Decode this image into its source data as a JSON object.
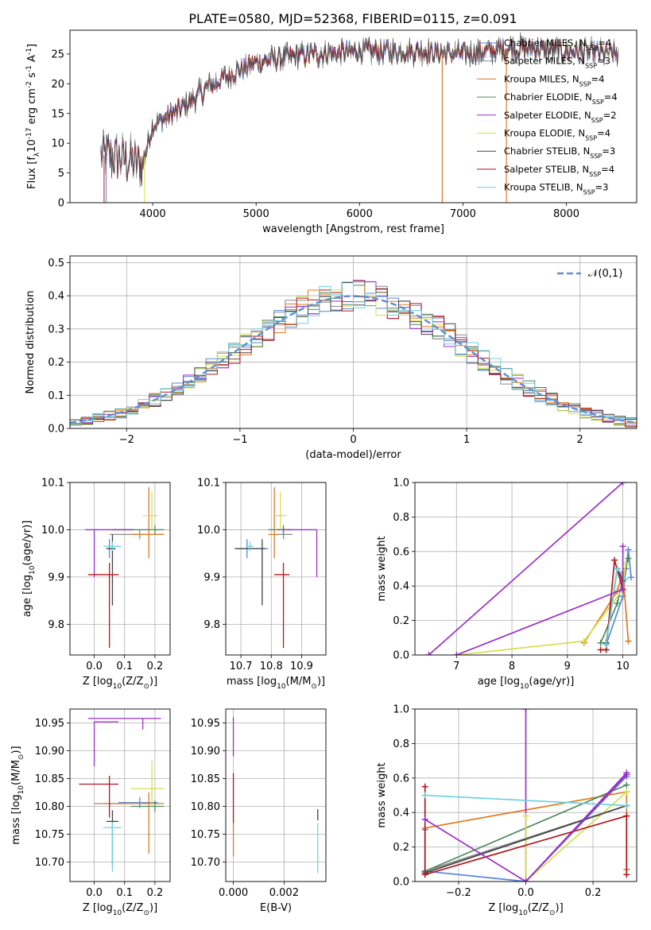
{
  "title": "PLATE=0580, MJD=52368, FIBERID=0115, z=0.091",
  "models": [
    {
      "label": "Chabrier MILES, N$_{SSP}$=4",
      "color": "#5b86d6"
    },
    {
      "label": "Salpeter MILES, N$_{SSP}$=3",
      "color": "#8a8a8a"
    },
    {
      "label": "Kroupa MILES, N$_{SSP}$=4",
      "color": "#e07a1f"
    },
    {
      "label": "Chabrier ELODIE, N$_{SSP}$=4",
      "color": "#4f8a5f"
    },
    {
      "label": "Salpeter ELODIE, N$_{SSP}$=2",
      "color": "#9b30c8"
    },
    {
      "label": "Kroupa ELODIE, N$_{SSP}$=4",
      "color": "#d4e04a"
    },
    {
      "label": "Chabrier STELIB, N$_{SSP}$=3",
      "color": "#444444"
    },
    {
      "label": "Salpeter STELIB, N$_{SSP}$=4",
      "color": "#b0181c"
    },
    {
      "label": "Kroupa STELIB, N$_{SSP}$=3",
      "color": "#6fd3dc"
    }
  ],
  "chart_data": [
    {
      "id": "spectrum",
      "type": "line",
      "xlabel": "wavelength [Angstrom, rest frame]",
      "ylabel": "Flux [f$_\\lambda$10$^{-17}$ erg cm$^{-2}$ s$^{-1}$ A$^{-1}$]",
      "xlim": [
        3200,
        8680
      ],
      "ylim": [
        0,
        29
      ],
      "xticks": [
        4000,
        5000,
        6000,
        7000,
        8000
      ],
      "yticks": [
        0,
        5,
        10,
        15,
        20,
        25
      ],
      "grid": false,
      "legend": "right",
      "continuum": {
        "x": [
          3500,
          3700,
          3900,
          4000,
          4300,
          4500,
          4800,
          5000,
          5300,
          5600,
          6000,
          6500,
          7000,
          7500,
          8000,
          8500
        ],
        "y": [
          8,
          7.5,
          6.5,
          13,
          16,
          19,
          22,
          23.5,
          24.5,
          25,
          25.5,
          25.5,
          25,
          26,
          25.5,
          25
        ]
      }
    },
    {
      "id": "residuals",
      "type": "bar",
      "xlabel": "(data-model)/error",
      "ylabel": "Normed distribution",
      "xlim": [
        -2.5,
        2.5
      ],
      "ylim": [
        0,
        0.52
      ],
      "xticks": [
        -2,
        -1,
        0,
        1,
        2
      ],
      "yticks": [
        0.0,
        0.1,
        0.2,
        0.3,
        0.4,
        0.5
      ],
      "grid": true,
      "legend": "top-right",
      "reference_label": "$\\mathcal{N}(0,1)$",
      "reference_color": "#5b8fd6",
      "bin_width": 0.1
    },
    {
      "id": "age-vs-Z",
      "type": "scatter",
      "xlabel": "Z [log$_{10}$($Z/Z_\\odot$)]",
      "ylabel": "age  [log$_{10}$($age/yr$)]",
      "xlim": [
        -0.08,
        0.25
      ],
      "ylim": [
        9.735,
        10.1
      ],
      "xticks": [
        0.0,
        0.1,
        0.2
      ],
      "yticks": [
        9.8,
        9.9,
        10.0,
        10.1
      ],
      "grid": true,
      "points": [
        {
          "model": 0,
          "x": 0.05,
          "y": 9.96,
          "xerr": [
            0.01,
            0.02
          ],
          "yerr": [
            0.02,
            0.02
          ]
        },
        {
          "model": 1,
          "x": 0.15,
          "y": 9.99,
          "xerr": [
            0.1,
            0.08
          ],
          "yerr": [
            0.01,
            0.01
          ]
        },
        {
          "model": 2,
          "x": 0.18,
          "y": 9.99,
          "xerr": [
            0.06,
            0.05
          ],
          "yerr": [
            0.05,
            0.1
          ]
        },
        {
          "model": 3,
          "x": 0.2,
          "y": 10.0,
          "xerr": [
            0.14,
            0.03
          ],
          "yerr": [
            0.01,
            0.01
          ]
        },
        {
          "model": 4,
          "x": 0.0,
          "y": 10.0,
          "xerr": [
            0.03,
            0.13
          ],
          "yerr": [
            0.1,
            0.0
          ]
        },
        {
          "model": 5,
          "x": 0.19,
          "y": 10.03,
          "xerr": [
            0.03,
            0.02
          ],
          "yerr": [
            0.03,
            0.05
          ]
        },
        {
          "model": 6,
          "x": 0.06,
          "y": 9.96,
          "xerr": [
            0.02,
            0.01
          ],
          "yerr": [
            0.12,
            0.03
          ]
        },
        {
          "model": 7,
          "x": 0.05,
          "y": 9.905,
          "xerr": [
            0.07,
            0.03
          ],
          "yerr": [
            0.155,
            0.025
          ]
        },
        {
          "model": 8,
          "x": 0.06,
          "y": 9.965,
          "xerr": [
            0.03,
            0.03
          ],
          "yerr": [
            0.01,
            0.01
          ]
        }
      ]
    },
    {
      "id": "age-vs-mass",
      "type": "scatter",
      "xlabel": "mass [log$_{10}$($M/M_\\odot$)]",
      "ylabel": "",
      "xlim": [
        10.65,
        10.98
      ],
      "ylim": [
        9.735,
        10.1
      ],
      "xticks": [
        10.7,
        10.8,
        10.9
      ],
      "yticks": [
        9.8,
        9.9,
        10.0,
        10.1
      ],
      "grid": true,
      "points": [
        {
          "model": 0,
          "x": 10.72,
          "y": 9.96,
          "xerr": [
            0.04,
            0.07
          ],
          "yerr": [
            0.02,
            0.02
          ]
        },
        {
          "model": 1,
          "x": 10.84,
          "y": 9.99,
          "xerr": [
            0.02,
            0.03
          ],
          "yerr": [
            0.01,
            0.01
          ]
        },
        {
          "model": 2,
          "x": 10.81,
          "y": 9.99,
          "xerr": [
            0.02,
            0.01
          ],
          "yerr": [
            0.05,
            0.1
          ]
        },
        {
          "model": 3,
          "x": 10.84,
          "y": 10.0,
          "xerr": [
            0.05,
            0.03
          ],
          "yerr": [
            0.01,
            0.01
          ]
        },
        {
          "model": 4,
          "x": 10.95,
          "y": 10.0,
          "xerr": [
            0.13,
            0.0
          ],
          "yerr": [
            0.1,
            0.0
          ]
        },
        {
          "model": 5,
          "x": 10.83,
          "y": 10.03,
          "xerr": [
            0.02,
            0.02
          ],
          "yerr": [
            0.03,
            0.05
          ]
        },
        {
          "model": 6,
          "x": 10.77,
          "y": 9.96,
          "xerr": [
            0.09,
            0.01
          ],
          "yerr": [
            0.12,
            0.02
          ]
        },
        {
          "model": 7,
          "x": 10.84,
          "y": 9.905,
          "xerr": [
            0.03,
            0.02
          ],
          "yerr": [
            0.155,
            0.025
          ]
        },
        {
          "model": 8,
          "x": 10.73,
          "y": 9.965,
          "xerr": [
            0.01,
            0.01
          ],
          "yerr": [
            0.01,
            0.01
          ]
        }
      ]
    },
    {
      "id": "weight-vs-age",
      "type": "line",
      "xlabel": "age  [log$_{10}$($age/yr$)]",
      "ylabel": "mass weight",
      "xlim": [
        6.25,
        10.25
      ],
      "ylim": [
        0,
        1.0
      ],
      "xticks": [
        7,
        8,
        9,
        10
      ],
      "yticks": [
        0.0,
        0.2,
        0.4,
        0.6,
        0.8,
        1.0
      ],
      "grid": true,
      "series": [
        {
          "model": 0,
          "x": [
            9.7,
            10.0,
            10.1,
            10.15
          ],
          "y": [
            0.06,
            0.34,
            0.61,
            0.45
          ]
        },
        {
          "model": 1,
          "x": [
            9.7,
            9.9,
            10.0
          ],
          "y": [
            0.07,
            0.5,
            0.43
          ]
        },
        {
          "model": 2,
          "x": [
            9.3,
            9.9,
            10.0,
            10.1
          ],
          "y": [
            0.07,
            0.37,
            0.48,
            0.08
          ]
        },
        {
          "model": 3,
          "x": [
            9.6,
            9.9,
            10.05,
            10.1
          ],
          "y": [
            0.07,
            0.3,
            0.5,
            0.56
          ]
        },
        {
          "model": 4,
          "x": [
            6.5,
            10.0
          ],
          "y": [
            0.0,
            1.0
          ]
        },
        {
          "model": 5,
          "x": [
            7.0,
            9.3,
            10.0,
            10.05
          ],
          "y": [
            0.0,
            0.08,
            0.38,
            0.53
          ]
        },
        {
          "model": 6,
          "x": [
            9.7,
            9.9,
            10.0
          ],
          "y": [
            0.07,
            0.5,
            0.43
          ]
        },
        {
          "model": 7,
          "x": [
            9.6,
            9.7,
            9.85,
            10.0
          ],
          "y": [
            0.03,
            0.03,
            0.55,
            0.38
          ]
        },
        {
          "model": 8,
          "x": [
            9.7,
            9.9,
            10.05
          ],
          "y": [
            0.06,
            0.5,
            0.44
          ]
        },
        {
          "model": 4,
          "x": [
            7.0,
            10.0
          ],
          "y": [
            0.0,
            0.38
          ]
        },
        {
          "model": 4,
          "x": [
            10.0,
            10.0
          ],
          "y": [
            0.38,
            0.63
          ]
        }
      ]
    },
    {
      "id": "mass-vs-Z",
      "type": "scatter",
      "xlabel": "Z [log$_{10}$($Z/Z_\\odot$)]",
      "ylabel": "mass [log$_{10}$($M/M_\\odot$)]",
      "xlim": [
        -0.08,
        0.25
      ],
      "ylim": [
        10.665,
        10.975
      ],
      "xticks": [
        0.0,
        0.1,
        0.2
      ],
      "yticks": [
        10.7,
        10.75,
        10.8,
        10.85,
        10.9,
        10.95
      ],
      "grid": true,
      "points": [
        {
          "model": 0,
          "x": 0.15,
          "y": 10.807,
          "xerr": [
            0.07,
            0.06
          ],
          "yerr": [
            0.01,
            0.01
          ]
        },
        {
          "model": 1,
          "x": 0.05,
          "y": 10.805,
          "xerr": [
            0.05,
            0.05
          ],
          "yerr": [
            0.005,
            0.005
          ]
        },
        {
          "model": 2,
          "x": 0.18,
          "y": 10.805,
          "xerr": [
            0.15,
            0.05
          ],
          "yerr": [
            0.09,
            0.02
          ]
        },
        {
          "model": 3,
          "x": 0.2,
          "y": 10.8,
          "xerr": [
            0.08,
            0.03
          ],
          "yerr": [
            0.01,
            0.01
          ]
        },
        {
          "model": 4,
          "x": 0.0,
          "y": 10.952,
          "xerr": [
            0.0,
            0.08
          ],
          "yerr": [
            0.08,
            0.0
          ]
        },
        {
          "model": 5,
          "x": 0.19,
          "y": 10.832,
          "xerr": [
            0.07,
            0.04
          ],
          "yerr": [
            0.03,
            0.05
          ]
        },
        {
          "model": 6,
          "x": 0.06,
          "y": 10.773,
          "xerr": [
            0.02,
            0.02
          ],
          "yerr": [
            0.08,
            0.02
          ]
        },
        {
          "model": 7,
          "x": 0.05,
          "y": 10.84,
          "xerr": [
            0.1,
            0.03
          ],
          "yerr": [
            0.06,
            0.015
          ]
        },
        {
          "model": 8,
          "x": 0.06,
          "y": 10.762,
          "xerr": [
            0.03,
            0.03
          ],
          "yerr": [
            0.08,
            0.01
          ]
        },
        {
          "model": 4,
          "x": 0.16,
          "y": 10.958,
          "xerr": [
            0.18,
            0.06
          ],
          "yerr": [
            0.02,
            0.0
          ]
        }
      ]
    },
    {
      "id": "mass-vs-ebv",
      "type": "scatter",
      "xlabel": "E(B-V)",
      "ylabel": "",
      "xlim": [
        -0.0003,
        0.00365
      ],
      "ylim": [
        10.665,
        10.975
      ],
      "xticks": [
        0.0,
        0.002
      ],
      "yticks": [
        10.7,
        10.75,
        10.8,
        10.85,
        10.9,
        10.95
      ],
      "grid": true,
      "points": [
        {
          "model": 4,
          "x": 0.0,
          "y": 10.93,
          "xerr": [
            0,
            0
          ],
          "yerr": [
            0.04,
            0.03
          ]
        },
        {
          "model": 7,
          "x": 0.0,
          "y": 10.82,
          "xerr": [
            0,
            0
          ],
          "yerr": [
            0.05,
            0.04
          ]
        },
        {
          "model": 2,
          "x": 0.0,
          "y": 10.74,
          "xerr": [
            0,
            0
          ],
          "yerr": [
            0.03,
            0.03
          ]
        },
        {
          "model": 6,
          "x": 0.00333,
          "y": 10.785,
          "xerr": [
            0,
            0
          ],
          "yerr": [
            0.01,
            0.01
          ]
        },
        {
          "model": 8,
          "x": 0.00333,
          "y": 10.73,
          "xerr": [
            0,
            0
          ],
          "yerr": [
            0.05,
            0.04
          ]
        }
      ]
    },
    {
      "id": "weight-vs-Z",
      "type": "line",
      "xlabel": "Z [log$_{10}$($Z/Z_\\odot$)]",
      "ylabel": "mass weight",
      "xlim": [
        -0.33,
        0.33
      ],
      "ylim": [
        0,
        1.0
      ],
      "xticks": [
        -0.2,
        0.0,
        0.2
      ],
      "yticks": [
        0.0,
        0.2,
        0.4,
        0.6,
        0.8,
        1.0
      ],
      "grid": true,
      "series": [
        {
          "model": 0,
          "x": [
            -0.3,
            -0.3,
            0.0,
            0.3
          ],
          "y": [
            0.3,
            0.06,
            0.0,
            0.61
          ]
        },
        {
          "model": 1,
          "x": [
            -0.3,
            0.3
          ],
          "y": [
            0.06,
            0.44
          ]
        },
        {
          "model": 2,
          "x": [
            -0.3,
            0.3,
            0.3
          ],
          "y": [
            0.31,
            0.52,
            0.07
          ]
        },
        {
          "model": 3,
          "x": [
            -0.3,
            0.3
          ],
          "y": [
            0.06,
            0.56
          ]
        },
        {
          "model": 4,
          "x": [
            0.0,
            0.0,
            0.3
          ],
          "y": [
            1.0,
            0.0,
            0.63
          ]
        },
        {
          "model": 5,
          "x": [
            0.0,
            0.0,
            0.3
          ],
          "y": [
            0.38,
            0.0,
            0.52
          ]
        },
        {
          "model": 6,
          "x": [
            -0.3,
            0.3
          ],
          "y": [
            0.05,
            0.44
          ]
        },
        {
          "model": 7,
          "x": [
            -0.3,
            -0.3,
            0.3,
            0.3
          ],
          "y": [
            0.55,
            0.04,
            0.38,
            0.04
          ]
        },
        {
          "model": 8,
          "x": [
            -0.3,
            0.3
          ],
          "y": [
            0.5,
            0.44
          ]
        },
        {
          "model": 4,
          "x": [
            -0.3,
            0.0,
            0.3
          ],
          "y": [
            0.36,
            0.0,
            0.62
          ]
        }
      ]
    }
  ]
}
